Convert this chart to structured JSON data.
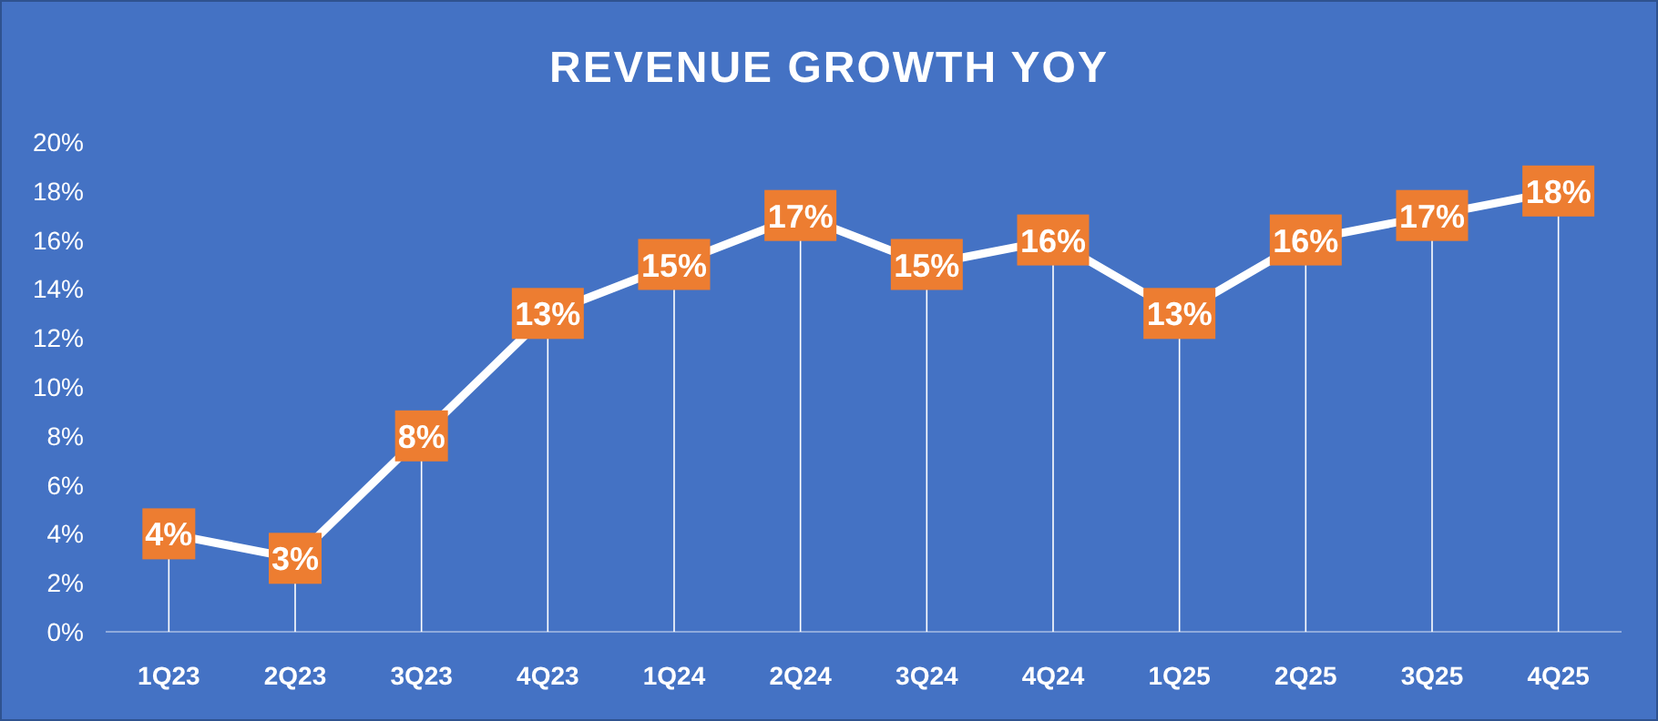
{
  "chart_data": {
    "type": "line",
    "title": "REVENUE GROWTH YOY",
    "categories": [
      "1Q23",
      "2Q23",
      "3Q23",
      "4Q23",
      "1Q24",
      "2Q24",
      "3Q24",
      "4Q24",
      "1Q25",
      "2Q25",
      "3Q25",
      "4Q25"
    ],
    "series": [
      {
        "color": "#ffffff",
        "values": [
          4,
          3,
          8,
          13,
          15,
          17,
          15,
          16,
          13,
          16,
          17,
          18
        ],
        "value_labels": [
          "4%",
          "3%",
          "8%",
          "13%",
          "15%",
          "17%",
          "15%",
          "16%",
          "13%",
          "16%",
          "17%",
          "18%"
        ]
      }
    ],
    "ylim": [
      0,
      20
    ],
    "yticks": [
      {
        "value": 0,
        "label": "0%"
      },
      {
        "value": 2,
        "label": "2%"
      },
      {
        "value": 4,
        "label": "4%"
      },
      {
        "value": 6,
        "label": "6%"
      },
      {
        "value": 8,
        "label": "8%"
      },
      {
        "value": 10,
        "label": "10%"
      },
      {
        "value": 12,
        "label": "12%"
      },
      {
        "value": 14,
        "label": "14%"
      },
      {
        "value": 16,
        "label": "16%"
      },
      {
        "value": 18,
        "label": "18%"
      },
      {
        "value": 20,
        "label": "20%"
      }
    ],
    "grid": "x",
    "marker": "square",
    "line_style": "solid"
  }
}
